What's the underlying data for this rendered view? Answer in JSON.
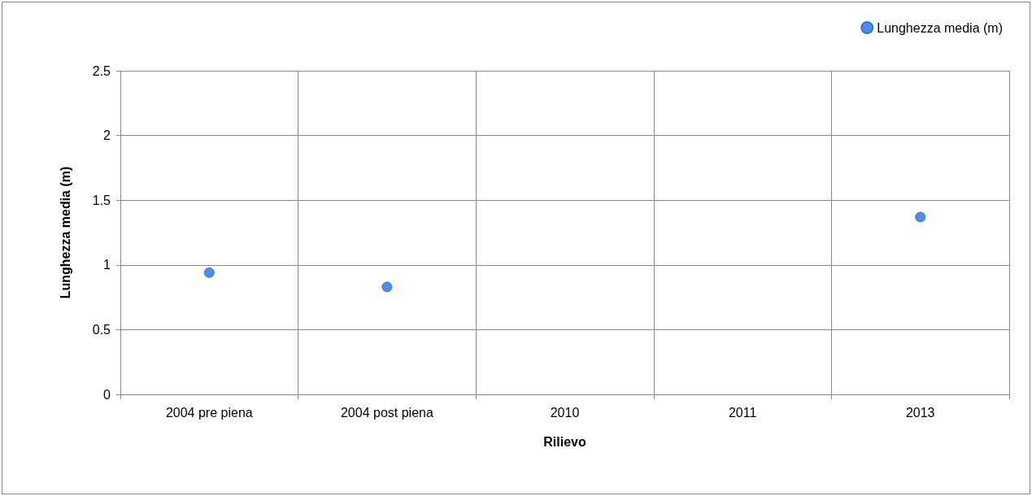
{
  "chart_data": {
    "type": "scatter",
    "xlabel": "Rilievo",
    "ylabel": "Lunghezza media (m)",
    "categories": [
      "2004 pre piena",
      "2004 post piena",
      "2010",
      "2011",
      "2013"
    ],
    "series": [
      {
        "name": "Lunghezza media (m)",
        "color": "#1f6fe8",
        "values": [
          0.94,
          0.83,
          null,
          null,
          1.37
        ]
      }
    ],
    "ylim": [
      0,
      2.5
    ],
    "yticks": [
      0,
      0.5,
      1,
      1.5,
      2,
      2.5
    ],
    "grid": true,
    "legend": "top right",
    "marker": "circle"
  }
}
